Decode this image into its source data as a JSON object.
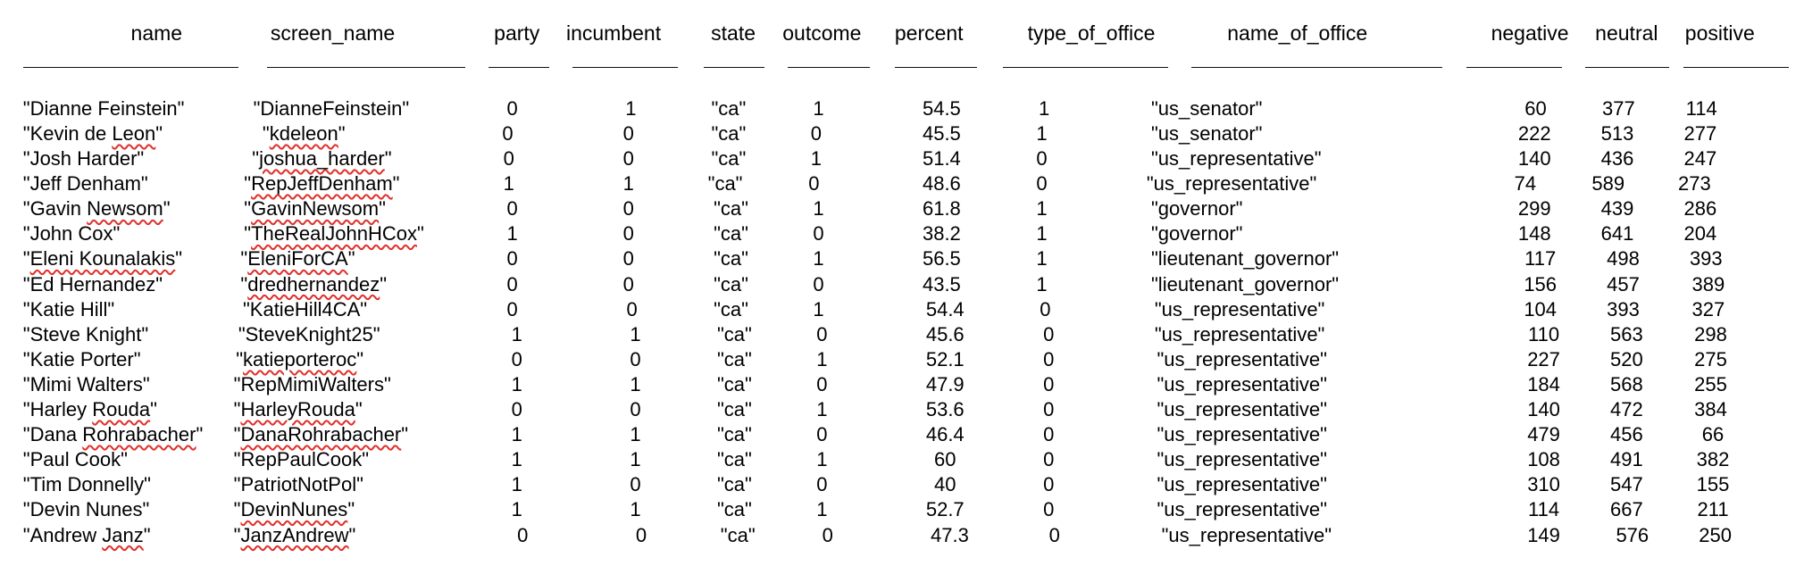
{
  "headers": [
    "name",
    "screen_name",
    "party",
    "incumbent",
    "state",
    "outcome",
    "percent",
    "type_of_office",
    "name_of_office",
    "negative",
    "neutral",
    "positive"
  ],
  "rows": [
    [
      "\"Dianne Feinstein\"",
      "\"DianneFeinstein\"",
      "0",
      "1",
      "\"ca\"",
      "1",
      "54.5",
      "1",
      "\"us_senator\"",
      "60",
      "377",
      "114"
    ],
    [
      "\"Kevin de Leon\"",
      "\"kdeleon\"",
      "0",
      "0",
      "\"ca\"",
      "0",
      "45.5",
      "1",
      "\"us_senator\"",
      "222",
      "513",
      "277"
    ],
    [
      "\"Josh Harder\"",
      "\"joshua_harder\"",
      "0",
      "0",
      "\"ca\"",
      "1",
      "51.4",
      "0",
      "\"us_representative\"",
      "140",
      "436",
      "247"
    ],
    [
      "\"Jeff Denham\"",
      "\"RepJeffDenham\"",
      "1",
      "1",
      "\"ca\"",
      "0",
      "48.6",
      "0",
      "\"us_representative\"",
      "74",
      "589",
      "273"
    ],
    [
      "\"Gavin Newsom\"",
      "\"GavinNewsom\"",
      "0",
      "0",
      "\"ca\"",
      "1",
      "61.8",
      "1",
      "\"governor\"",
      "299",
      "439",
      "286"
    ],
    [
      "\"John Cox\"",
      "\"TheRealJohnHCox\"",
      "1",
      "0",
      "\"ca\"",
      "0",
      "38.2",
      "1",
      "\"governor\"",
      "148",
      "641",
      "204"
    ],
    [
      "\"Eleni Kounalakis\"",
      "\"EleniForCA\"",
      "0",
      "0",
      "\"ca\"",
      "1",
      "56.5",
      "1",
      "\"lieutenant_governor\"",
      "117",
      "498",
      "393"
    ],
    [
      "\"Ed Hernandez\"",
      "\"dredhernandez\"",
      "0",
      "0",
      "\"ca\"",
      "0",
      "43.5",
      "1",
      "\"lieutenant_governor\"",
      "156",
      "457",
      "389"
    ],
    [
      "\"Katie Hill\"",
      "\"KatieHill4CA\"",
      "0",
      "0",
      "\"ca\"",
      "1",
      "54.4",
      "0",
      "\"us_representative\"",
      "104",
      "393",
      "327"
    ],
    [
      "\"Steve Knight\"",
      "\"SteveKnight25\"",
      "1",
      "1",
      "\"ca\"",
      "0",
      "45.6",
      "0",
      "\"us_representative\"",
      "110",
      "563",
      "298"
    ],
    [
      "\"Katie Porter\"",
      "\"katieporteroc\"",
      "0",
      "0",
      "\"ca\"",
      "1",
      "52.1",
      "0",
      "\"us_representative\"",
      "227",
      "520",
      "275"
    ],
    [
      "\"Mimi Walters\"",
      "\"RepMimiWalters\"",
      "1",
      "1",
      "\"ca\"",
      "0",
      "47.9",
      "0",
      "\"us_representative\"",
      "184",
      "568",
      "255"
    ],
    [
      "\"Harley Rouda\"",
      "\"HarleyRouda\"",
      "0",
      "0",
      "\"ca\"",
      "1",
      "53.6",
      "0",
      "\"us_representative\"",
      "140",
      "472",
      "384"
    ],
    [
      "\"Dana Rohrabacher\"",
      "\"DanaRohrabacher\"",
      "1",
      "1",
      "\"ca\"",
      "0",
      "46.4",
      "0",
      "\"us_representative\"",
      "479",
      "456",
      "66"
    ],
    [
      "\"Paul Cook\"",
      "\"RepPaulCook\"",
      "1",
      "1",
      "\"ca\"",
      "1",
      "60",
      "0",
      "\"us_representative\"",
      "108",
      "491",
      "382"
    ],
    [
      "\"Tim Donnelly\"",
      "\"PatriotNotPol\"",
      "1",
      "0",
      "\"ca\"",
      "0",
      "40",
      "0",
      "\"us_representative\"",
      "310",
      "547",
      "155"
    ],
    [
      "\"Devin Nunes\"",
      "\"DevinNunes\"",
      "1",
      "1",
      "\"ca\"",
      "1",
      "52.7",
      "0",
      "\"us_representative\"",
      "114",
      "667",
      "211"
    ],
    [
      "\"Andrew Janz\"",
      "\"JanzAndrew\"",
      "0",
      "0",
      "\"ca\"",
      "0",
      "47.3",
      "0",
      "\"us_representative\"",
      "149",
      "576",
      "250"
    ]
  ]
}
